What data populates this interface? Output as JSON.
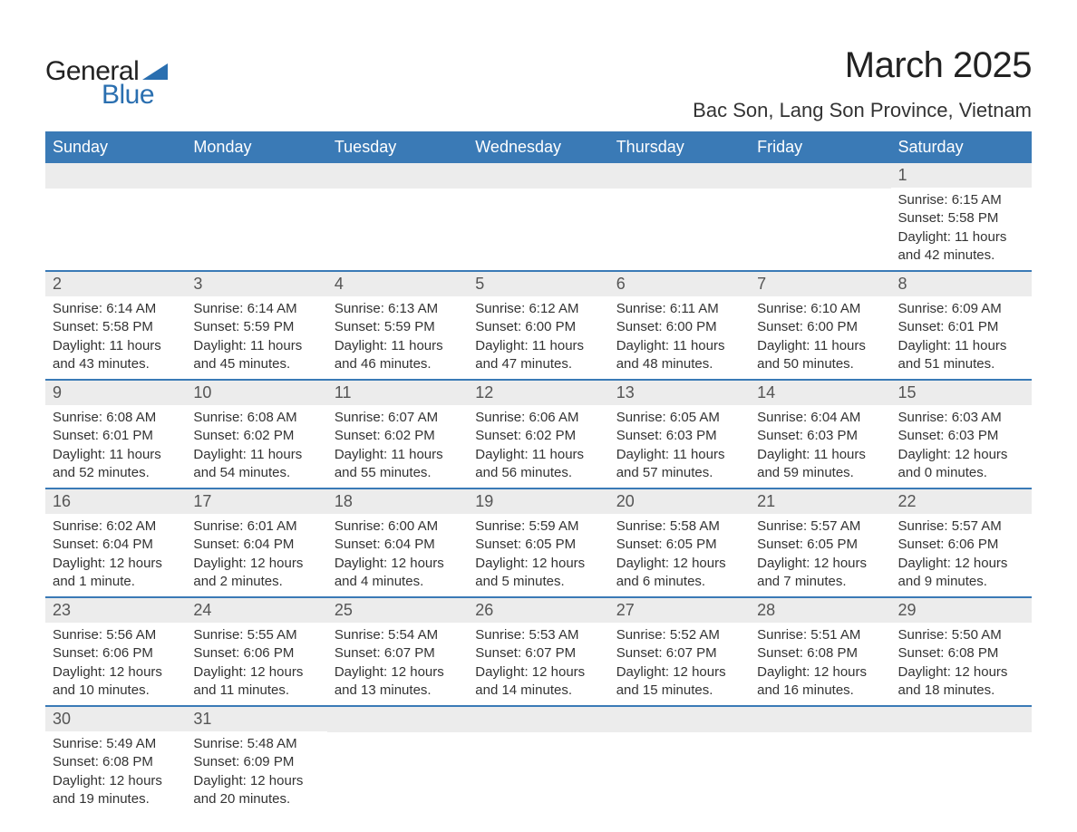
{
  "logo": {
    "word1": "General",
    "word2": "Blue",
    "word1_color": "#222222",
    "word2_color": "#2a6fb0"
  },
  "title": "March 2025",
  "location": "Bac Son, Lang Son Province, Vietnam",
  "colors": {
    "header_bg": "#3a7ab6",
    "header_text": "#ffffff",
    "daynum_bg": "#ececec",
    "daynum_text": "#555555",
    "body_text": "#333333",
    "row_divider": "#3a7ab6",
    "page_bg": "#ffffff"
  },
  "fontsizes": {
    "title": 40,
    "subtitle": 22,
    "weekday": 18,
    "daynum": 18,
    "body": 15,
    "logo": 30
  },
  "weekdays": [
    "Sunday",
    "Monday",
    "Tuesday",
    "Wednesday",
    "Thursday",
    "Friday",
    "Saturday"
  ],
  "layout": {
    "columns": 7,
    "rows": 6,
    "first_day_column_index": 6
  },
  "weeks": [
    [
      null,
      null,
      null,
      null,
      null,
      null,
      {
        "n": "1",
        "sunrise": "Sunrise: 6:15 AM",
        "sunset": "Sunset: 5:58 PM",
        "dl1": "Daylight: 11 hours",
        "dl2": "and 42 minutes."
      }
    ],
    [
      {
        "n": "2",
        "sunrise": "Sunrise: 6:14 AM",
        "sunset": "Sunset: 5:58 PM",
        "dl1": "Daylight: 11 hours",
        "dl2": "and 43 minutes."
      },
      {
        "n": "3",
        "sunrise": "Sunrise: 6:14 AM",
        "sunset": "Sunset: 5:59 PM",
        "dl1": "Daylight: 11 hours",
        "dl2": "and 45 minutes."
      },
      {
        "n": "4",
        "sunrise": "Sunrise: 6:13 AM",
        "sunset": "Sunset: 5:59 PM",
        "dl1": "Daylight: 11 hours",
        "dl2": "and 46 minutes."
      },
      {
        "n": "5",
        "sunrise": "Sunrise: 6:12 AM",
        "sunset": "Sunset: 6:00 PM",
        "dl1": "Daylight: 11 hours",
        "dl2": "and 47 minutes."
      },
      {
        "n": "6",
        "sunrise": "Sunrise: 6:11 AM",
        "sunset": "Sunset: 6:00 PM",
        "dl1": "Daylight: 11 hours",
        "dl2": "and 48 minutes."
      },
      {
        "n": "7",
        "sunrise": "Sunrise: 6:10 AM",
        "sunset": "Sunset: 6:00 PM",
        "dl1": "Daylight: 11 hours",
        "dl2": "and 50 minutes."
      },
      {
        "n": "8",
        "sunrise": "Sunrise: 6:09 AM",
        "sunset": "Sunset: 6:01 PM",
        "dl1": "Daylight: 11 hours",
        "dl2": "and 51 minutes."
      }
    ],
    [
      {
        "n": "9",
        "sunrise": "Sunrise: 6:08 AM",
        "sunset": "Sunset: 6:01 PM",
        "dl1": "Daylight: 11 hours",
        "dl2": "and 52 minutes."
      },
      {
        "n": "10",
        "sunrise": "Sunrise: 6:08 AM",
        "sunset": "Sunset: 6:02 PM",
        "dl1": "Daylight: 11 hours",
        "dl2": "and 54 minutes."
      },
      {
        "n": "11",
        "sunrise": "Sunrise: 6:07 AM",
        "sunset": "Sunset: 6:02 PM",
        "dl1": "Daylight: 11 hours",
        "dl2": "and 55 minutes."
      },
      {
        "n": "12",
        "sunrise": "Sunrise: 6:06 AM",
        "sunset": "Sunset: 6:02 PM",
        "dl1": "Daylight: 11 hours",
        "dl2": "and 56 minutes."
      },
      {
        "n": "13",
        "sunrise": "Sunrise: 6:05 AM",
        "sunset": "Sunset: 6:03 PM",
        "dl1": "Daylight: 11 hours",
        "dl2": "and 57 minutes."
      },
      {
        "n": "14",
        "sunrise": "Sunrise: 6:04 AM",
        "sunset": "Sunset: 6:03 PM",
        "dl1": "Daylight: 11 hours",
        "dl2": "and 59 minutes."
      },
      {
        "n": "15",
        "sunrise": "Sunrise: 6:03 AM",
        "sunset": "Sunset: 6:03 PM",
        "dl1": "Daylight: 12 hours",
        "dl2": "and 0 minutes."
      }
    ],
    [
      {
        "n": "16",
        "sunrise": "Sunrise: 6:02 AM",
        "sunset": "Sunset: 6:04 PM",
        "dl1": "Daylight: 12 hours",
        "dl2": "and 1 minute."
      },
      {
        "n": "17",
        "sunrise": "Sunrise: 6:01 AM",
        "sunset": "Sunset: 6:04 PM",
        "dl1": "Daylight: 12 hours",
        "dl2": "and 2 minutes."
      },
      {
        "n": "18",
        "sunrise": "Sunrise: 6:00 AM",
        "sunset": "Sunset: 6:04 PM",
        "dl1": "Daylight: 12 hours",
        "dl2": "and 4 minutes."
      },
      {
        "n": "19",
        "sunrise": "Sunrise: 5:59 AM",
        "sunset": "Sunset: 6:05 PM",
        "dl1": "Daylight: 12 hours",
        "dl2": "and 5 minutes."
      },
      {
        "n": "20",
        "sunrise": "Sunrise: 5:58 AM",
        "sunset": "Sunset: 6:05 PM",
        "dl1": "Daylight: 12 hours",
        "dl2": "and 6 minutes."
      },
      {
        "n": "21",
        "sunrise": "Sunrise: 5:57 AM",
        "sunset": "Sunset: 6:05 PM",
        "dl1": "Daylight: 12 hours",
        "dl2": "and 7 minutes."
      },
      {
        "n": "22",
        "sunrise": "Sunrise: 5:57 AM",
        "sunset": "Sunset: 6:06 PM",
        "dl1": "Daylight: 12 hours",
        "dl2": "and 9 minutes."
      }
    ],
    [
      {
        "n": "23",
        "sunrise": "Sunrise: 5:56 AM",
        "sunset": "Sunset: 6:06 PM",
        "dl1": "Daylight: 12 hours",
        "dl2": "and 10 minutes."
      },
      {
        "n": "24",
        "sunrise": "Sunrise: 5:55 AM",
        "sunset": "Sunset: 6:06 PM",
        "dl1": "Daylight: 12 hours",
        "dl2": "and 11 minutes."
      },
      {
        "n": "25",
        "sunrise": "Sunrise: 5:54 AM",
        "sunset": "Sunset: 6:07 PM",
        "dl1": "Daylight: 12 hours",
        "dl2": "and 13 minutes."
      },
      {
        "n": "26",
        "sunrise": "Sunrise: 5:53 AM",
        "sunset": "Sunset: 6:07 PM",
        "dl1": "Daylight: 12 hours",
        "dl2": "and 14 minutes."
      },
      {
        "n": "27",
        "sunrise": "Sunrise: 5:52 AM",
        "sunset": "Sunset: 6:07 PM",
        "dl1": "Daylight: 12 hours",
        "dl2": "and 15 minutes."
      },
      {
        "n": "28",
        "sunrise": "Sunrise: 5:51 AM",
        "sunset": "Sunset: 6:08 PM",
        "dl1": "Daylight: 12 hours",
        "dl2": "and 16 minutes."
      },
      {
        "n": "29",
        "sunrise": "Sunrise: 5:50 AM",
        "sunset": "Sunset: 6:08 PM",
        "dl1": "Daylight: 12 hours",
        "dl2": "and 18 minutes."
      }
    ],
    [
      {
        "n": "30",
        "sunrise": "Sunrise: 5:49 AM",
        "sunset": "Sunset: 6:08 PM",
        "dl1": "Daylight: 12 hours",
        "dl2": "and 19 minutes."
      },
      {
        "n": "31",
        "sunrise": "Sunrise: 5:48 AM",
        "sunset": "Sunset: 6:09 PM",
        "dl1": "Daylight: 12 hours",
        "dl2": "and 20 minutes."
      },
      null,
      null,
      null,
      null,
      null
    ]
  ]
}
